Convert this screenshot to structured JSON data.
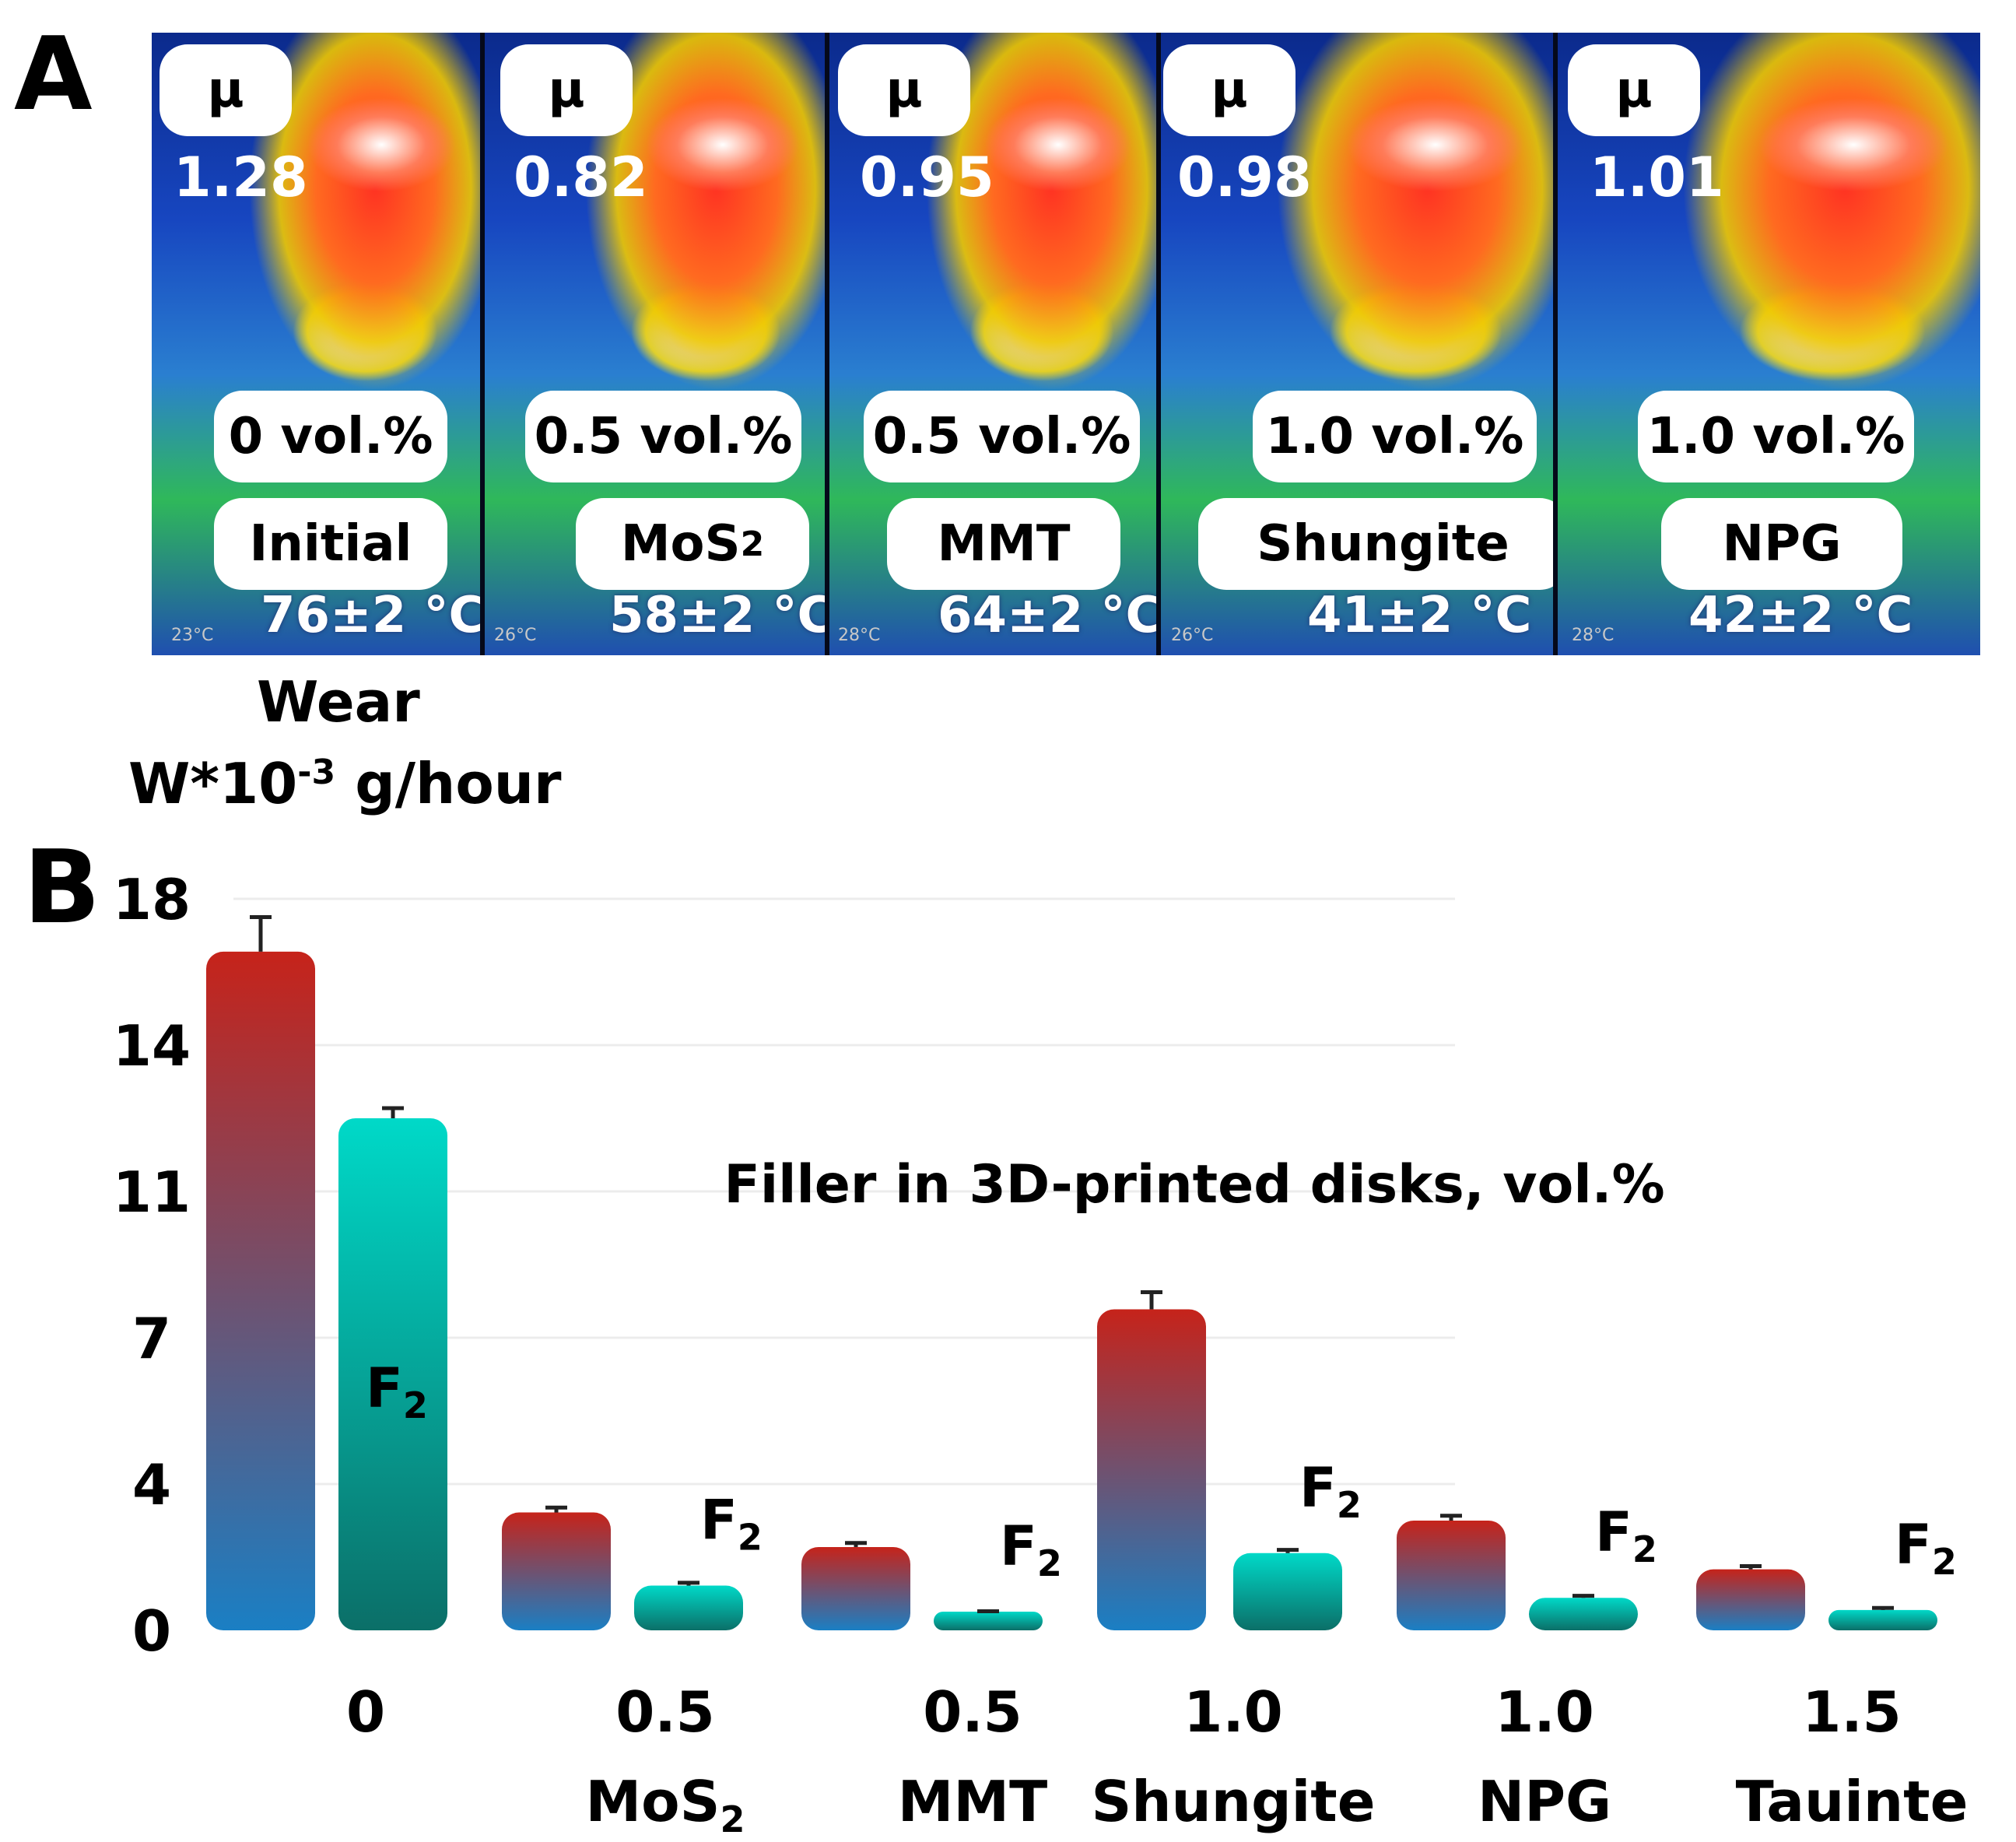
{
  "panel_a": {
    "label": "A",
    "mu_symbol": "μ",
    "tiles": [
      {
        "mu": "1.28",
        "vol": "0 vol.%",
        "name": "Initial",
        "temp": "76±2 °C",
        "ambient": "23°C"
      },
      {
        "mu": "0.82",
        "vol": "0.5 vol.%",
        "name": "MoS",
        "name_sub": "2",
        "temp": "58±2 °C",
        "ambient": "26°C"
      },
      {
        "mu": "0.95",
        "vol": "0.5 vol.%",
        "name": "MMT",
        "temp": "64±2 °C",
        "ambient": "28°C"
      },
      {
        "mu": "0.98",
        "vol": "1.0 vol.%",
        "name": "Shungite",
        "temp": "41±2 °C",
        "ambient": "26°C"
      },
      {
        "mu": "1.01",
        "vol": "1.0 vol.%",
        "name": "NPG",
        "temp": "42±2 °C",
        "ambient": "28°C"
      }
    ]
  },
  "panel_b": {
    "label": "B",
    "wear_title": "Wear",
    "wear_unit_prefix": "W*10",
    "wear_unit_exp": "-3",
    "wear_unit_suffix": " g/hour"
  },
  "chart_data": {
    "type": "bar",
    "title": "Filler in 3D-printed disks, vol.%",
    "ylabel": "Wear W*10-3 g/hour",
    "ylim": [
      0,
      18
    ],
    "yticks": [
      "0",
      "4",
      "7",
      "11",
      "14",
      "18"
    ],
    "ytick_values": [
      0,
      3.6,
      7.2,
      10.8,
      14.4,
      18
    ],
    "categories": [
      {
        "value": "0",
        "name": ""
      },
      {
        "value": "0.5",
        "name": "MoS",
        "name_sub": "2"
      },
      {
        "value": "0.5",
        "name": "MMT"
      },
      {
        "value": "1.0",
        "name": "Shungite"
      },
      {
        "value": "1.0",
        "name": "NPG"
      },
      {
        "value": "1.5",
        "name": "Tauinte"
      }
    ],
    "series": [
      {
        "name": "Wear",
        "values": [
          16.7,
          2.9,
          2.05,
          7.9,
          2.7,
          1.5
        ],
        "errors": [
          0.85,
          0.12,
          0.1,
          0.42,
          0.12,
          0.08
        ]
      },
      {
        "name": "F2",
        "label": "F",
        "label_sub": "2",
        "values": [
          12.6,
          1.1,
          0.42,
          1.9,
          0.8,
          0.5
        ],
        "errors": [
          0.25,
          0.07,
          0.05,
          0.08,
          0.05,
          0.05
        ]
      }
    ],
    "colors": {
      "wear_top": "#c6231a",
      "wear_bottom": "#1a7fc4",
      "f2_top": "#00d9c8",
      "f2_bottom": "#0b6f68"
    }
  }
}
